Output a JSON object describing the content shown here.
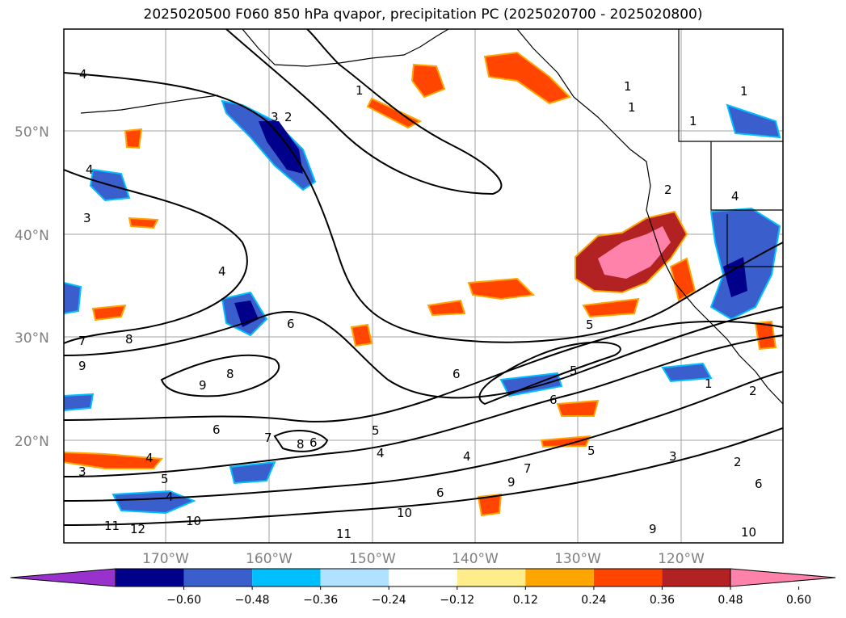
{
  "title": "2025020500 F060 850 hPa qvapor, precipitation PC (2025020700 - 2025020800)",
  "map": {
    "lat_labels": [
      "50°N",
      "40°N",
      "30°N",
      "20°N"
    ],
    "lon_labels": [
      "170°W",
      "160°W",
      "150°W",
      "140°W",
      "130°W",
      "120°W"
    ],
    "contour_labels": [
      "4",
      "1",
      "3",
      "2",
      "4",
      "3",
      "4",
      "7",
      "8",
      "9",
      "9",
      "8",
      "6",
      "6",
      "7",
      "8",
      "6",
      "5",
      "4",
      "3",
      "4",
      "5",
      "4",
      "11",
      "12",
      "10",
      "11",
      "10",
      "4",
      "5",
      "6",
      "7",
      "9",
      "6",
      "5",
      "6",
      "5",
      "3",
      "2",
      "6",
      "2",
      "1",
      "2",
      "4",
      "1",
      "1",
      "1",
      "1",
      "9",
      "10"
    ]
  },
  "colorbar": {
    "ticks": [
      "−0.60",
      "−0.48",
      "−0.36",
      "−0.24",
      "−0.12",
      "0.12",
      "0.24",
      "0.36",
      "0.48",
      "0.60"
    ],
    "colors": [
      "#9932cc",
      "#00008b",
      "#3a5fcd",
      "#00bfff",
      "#b0e2ff",
      "#ffffff",
      "#ffec8b",
      "#ffa500",
      "#ff4500",
      "#b22222",
      "#ff82ab"
    ]
  },
  "legend_colors": {
    "land_line": "#000000",
    "grid": "#a0a0a0"
  }
}
